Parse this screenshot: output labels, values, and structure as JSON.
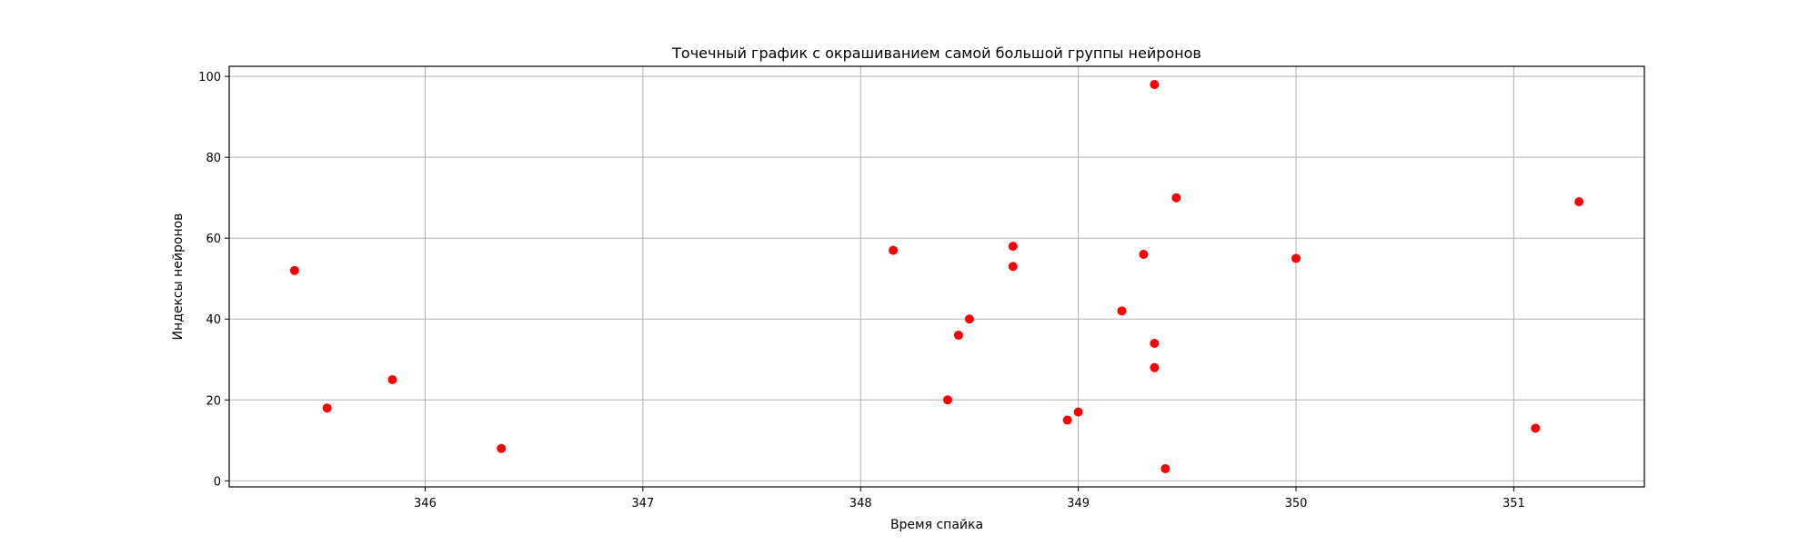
{
  "chart_data": {
    "type": "scatter",
    "title": "Точечный график с окрашиванием самой большой группы нейронов",
    "xlabel": "Время спайка",
    "ylabel": "Индексы нейронов",
    "xlim": [
      345.1,
      351.6
    ],
    "ylim": [
      -1.5,
      102.5
    ],
    "xticks": [
      346,
      347,
      348,
      349,
      350,
      351
    ],
    "yticks": [
      0,
      20,
      40,
      60,
      80,
      100
    ],
    "grid": true,
    "point_color": "#ff0000",
    "points": [
      {
        "x": 345.4,
        "y": 52
      },
      {
        "x": 345.55,
        "y": 18
      },
      {
        "x": 345.85,
        "y": 25
      },
      {
        "x": 346.35,
        "y": 8
      },
      {
        "x": 348.15,
        "y": 57
      },
      {
        "x": 348.4,
        "y": 20
      },
      {
        "x": 348.45,
        "y": 36
      },
      {
        "x": 348.5,
        "y": 40
      },
      {
        "x": 348.7,
        "y": 58
      },
      {
        "x": 348.7,
        "y": 53
      },
      {
        "x": 348.95,
        "y": 15
      },
      {
        "x": 349.0,
        "y": 17
      },
      {
        "x": 349.2,
        "y": 42
      },
      {
        "x": 349.3,
        "y": 56
      },
      {
        "x": 349.35,
        "y": 98
      },
      {
        "x": 349.35,
        "y": 34
      },
      {
        "x": 349.35,
        "y": 28
      },
      {
        "x": 349.4,
        "y": 3
      },
      {
        "x": 349.45,
        "y": 70
      },
      {
        "x": 350.0,
        "y": 55
      },
      {
        "x": 351.1,
        "y": 13
      },
      {
        "x": 351.3,
        "y": 69
      }
    ]
  }
}
